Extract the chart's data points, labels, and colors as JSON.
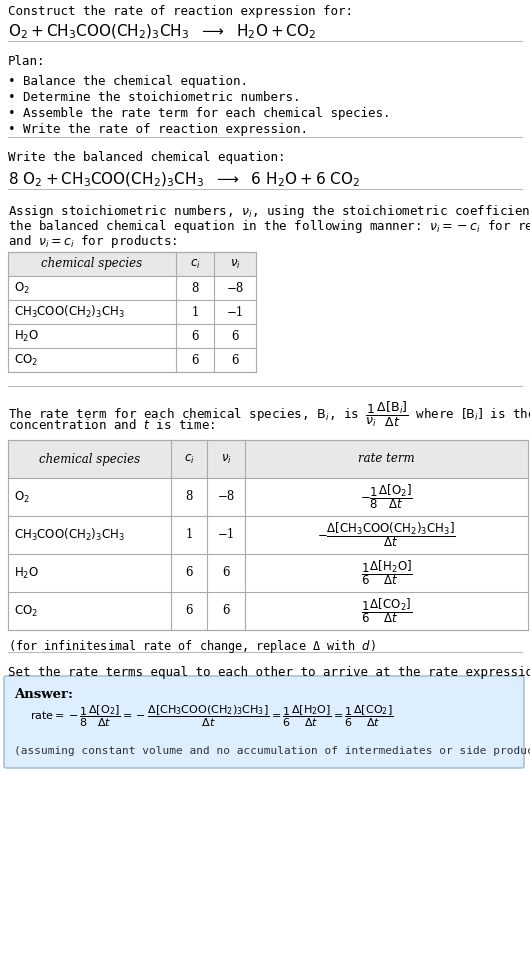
{
  "title_line1": "Construct the rate of reaction expression for:",
  "plan_header": "Plan:",
  "plan_items": [
    "• Balance the chemical equation.",
    "• Determine the stoichiometric numbers.",
    "• Assemble the rate term for each chemical species.",
    "• Write the rate of reaction expression."
  ],
  "balanced_header": "Write the balanced chemical equation:",
  "stoich_intro_lines": [
    "Assign stoichiometric numbers, $\\nu_i$, using the stoichiometric coefficients, $c_i$, from",
    "the balanced chemical equation in the following manner: $\\nu_i = -c_i$ for reactants",
    "and $\\nu_i = c_i$ for products:"
  ],
  "table1_headers": [
    "chemical species",
    "$c_i$",
    "$\\nu_i$"
  ],
  "table1_rows": [
    [
      "$\\mathrm{O_2}$",
      "8",
      "−8"
    ],
    [
      "$\\mathrm{CH_3COO(CH_2)_3CH_3}$",
      "1",
      "−1"
    ],
    [
      "$\\mathrm{H_2O}$",
      "6",
      "6"
    ],
    [
      "$\\mathrm{CO_2}$",
      "6",
      "6"
    ]
  ],
  "rate_intro_lines": [
    "The rate term for each chemical species, $\\mathrm{B}_i$, is $\\dfrac{1}{\\nu_i}\\dfrac{\\Delta[\\mathrm{B}_i]}{\\Delta t}$ where $[\\mathrm{B}_i]$ is the amount",
    "concentration and $t$ is time:"
  ],
  "table2_headers": [
    "chemical species",
    "$c_i$",
    "$\\nu_i$",
    "rate term"
  ],
  "table2_rows": [
    [
      "$\\mathrm{O_2}$",
      "8",
      "−8",
      "$-\\dfrac{1}{8}\\dfrac{\\Delta[\\mathrm{O_2}]}{\\Delta t}$"
    ],
    [
      "$\\mathrm{CH_3COO(CH_2)_3CH_3}$",
      "1",
      "−1",
      "$-\\dfrac{\\Delta[\\mathrm{CH_3COO(CH_2)_3CH_3}]}{\\Delta t}$"
    ],
    [
      "$\\mathrm{H_2O}$",
      "6",
      "6",
      "$\\dfrac{1}{6}\\dfrac{\\Delta[\\mathrm{H_2O}]}{\\Delta t}$"
    ],
    [
      "$\\mathrm{CO_2}$",
      "6",
      "6",
      "$\\dfrac{1}{6}\\dfrac{\\Delta[\\mathrm{CO_2}]}{\\Delta t}$"
    ]
  ],
  "infinitesimal_note": "(for infinitesimal rate of change, replace Δ with $d$)",
  "set_equal_text": "Set the rate terms equal to each other to arrive at the rate expression:",
  "answer_label": "Answer:",
  "answer_box_color": "#ddeeff",
  "answer_box_border": "#9bb8cc",
  "assuming_note": "(assuming constant volume and no accumulation of intermediates or side products)",
  "bg_color": "#ffffff",
  "table_header_bg": "#e8e8e8",
  "table_border_color": "#aaaaaa",
  "separator_color": "#bbbbbb"
}
